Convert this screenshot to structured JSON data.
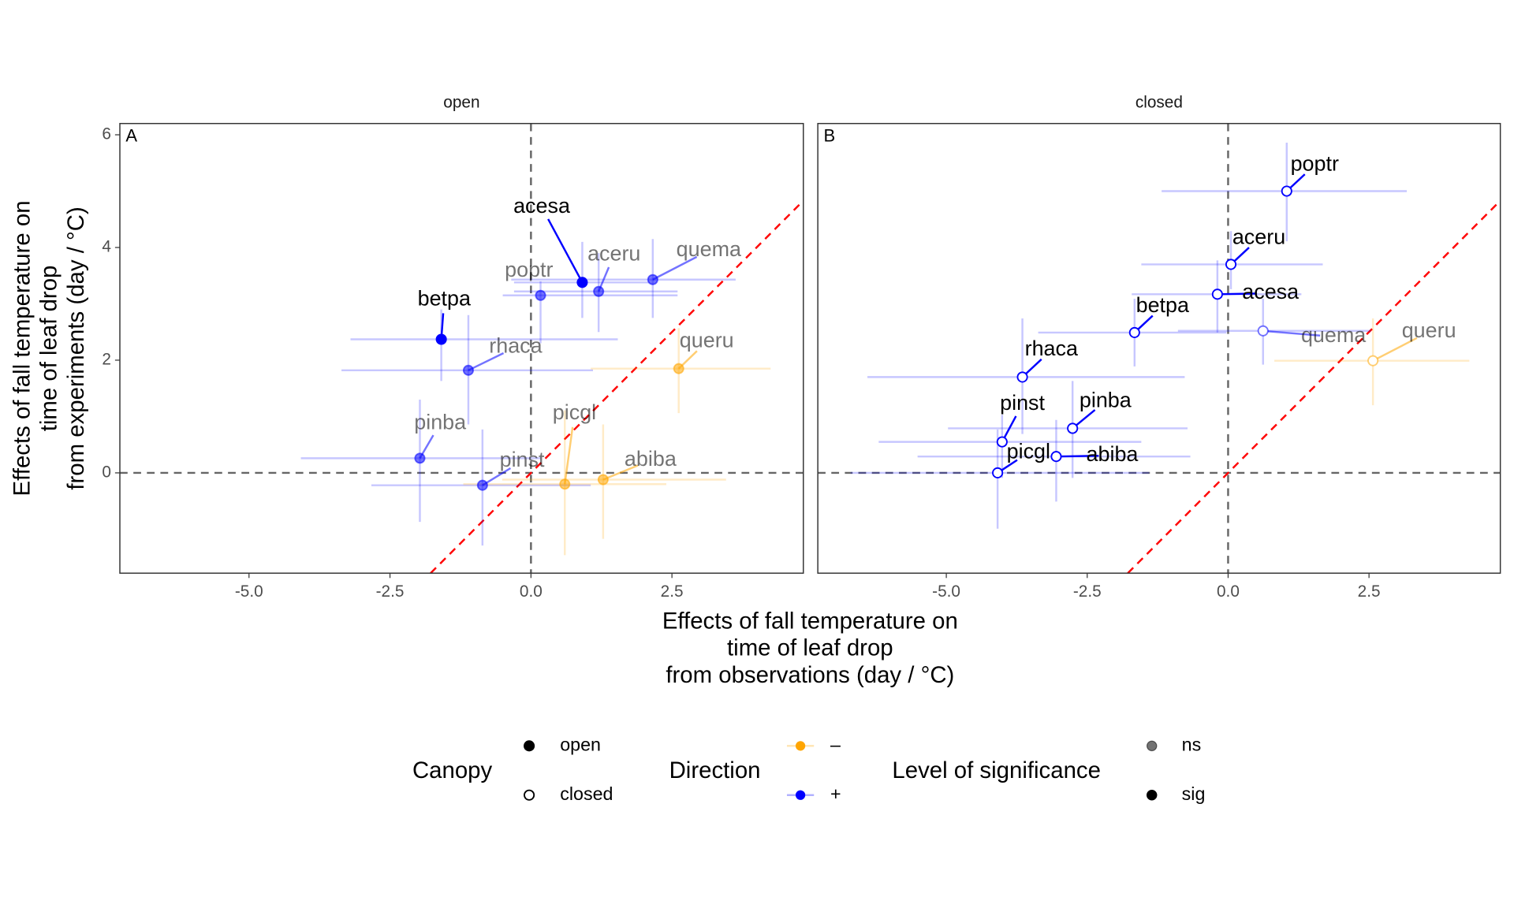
{
  "x_label": [
    "Effects of fall temperature on",
    "time of leaf drop",
    "from observations (day / °C)"
  ],
  "y_label": [
    "Effects of fall temperature on",
    "time of leaf drop",
    "from experiments (day / °C)"
  ],
  "legend": {
    "canopy": {
      "title": "Canopy",
      "items": [
        {
          "label": "open",
          "filled": true
        },
        {
          "label": "closed",
          "filled": false
        }
      ]
    },
    "direction": {
      "title": "Direction",
      "items": [
        {
          "label": "–",
          "color": "#FFA500"
        },
        {
          "label": "+",
          "color": "#0000FF"
        }
      ]
    },
    "significance": {
      "title": "Level of significance",
      "items": [
        {
          "label": "ns",
          "alpha": 0.55
        },
        {
          "label": "sig",
          "alpha": 1
        }
      ]
    }
  },
  "chart_data": [
    {
      "type": "scatter",
      "title": "open",
      "panel": "A",
      "xlim": [
        -7.29,
        4.83
      ],
      "ylim": [
        -1.78,
        6.2
      ],
      "xticks": [
        {
          "value": -5,
          "label": "-5.0"
        },
        2.5,
        {
          "value": 0,
          "label": "0.0"
        },
        {
          "value": -2.5,
          "label": "-2.5"
        }
      ],
      "yticks": [
        0,
        2,
        4,
        6
      ],
      "points": [
        {
          "label": "acesa",
          "x": 0.91,
          "y": 3.38,
          "x_range": [
            -0.3,
            2.1
          ],
          "y_range": [
            2.75,
            4.1
          ],
          "direction": "+",
          "significance": "sig"
        },
        {
          "label": "aceru",
          "x": 1.2,
          "y": 3.22,
          "x_range": [
            -0.3,
            2.6
          ],
          "y_range": [
            2.5,
            3.9
          ],
          "direction": "+",
          "significance": "ns"
        },
        {
          "label": "poptr",
          "x": 0.17,
          "y": 3.15,
          "x_range": [
            -0.5,
            2.6
          ],
          "y_range": [
            2.3,
            3.4
          ],
          "direction": "+",
          "significance": "ns"
        },
        {
          "label": "quema",
          "x": 2.16,
          "y": 3.43,
          "x_range": [
            -0.35,
            3.63
          ],
          "y_range": [
            2.75,
            4.15
          ],
          "direction": "+",
          "significance": "ns"
        },
        {
          "label": "betpa",
          "x": -1.59,
          "y": 2.37,
          "x_range": [
            -3.2,
            1.54
          ],
          "y_range": [
            1.63,
            2.9
          ],
          "direction": "+",
          "significance": "sig"
        },
        {
          "label": "rhaca",
          "x": -1.11,
          "y": 1.82,
          "x_range": [
            -3.36,
            1.1
          ],
          "y_range": [
            0.86,
            2.8
          ],
          "direction": "+",
          "significance": "ns"
        },
        {
          "label": "queru",
          "x": 2.62,
          "y": 1.85,
          "x_range": [
            1.06,
            4.25
          ],
          "y_range": [
            1.06,
            2.57
          ],
          "direction": "–",
          "significance": "ns"
        },
        {
          "label": "pinba",
          "x": -1.97,
          "y": 0.26,
          "x_range": [
            -4.08,
            0.17
          ],
          "y_range": [
            -0.87,
            1.3
          ],
          "direction": "+",
          "significance": "ns"
        },
        {
          "label": "pinst",
          "x": -0.86,
          "y": -0.22,
          "x_range": [
            -2.83,
            1.06
          ],
          "y_range": [
            -1.29,
            0.77
          ],
          "direction": "+",
          "significance": "ns"
        },
        {
          "label": "picgl",
          "x": 0.6,
          "y": -0.2,
          "x_range": [
            -1.2,
            2.4
          ],
          "y_range": [
            -1.46,
            1.11
          ],
          "direction": "–",
          "significance": "ns"
        },
        {
          "label": "abiba",
          "x": 1.28,
          "y": -0.12,
          "x_range": [
            -0.51,
            3.46
          ],
          "y_range": [
            -1.17,
            0.86
          ],
          "direction": "–",
          "significance": "ns"
        }
      ]
    },
    {
      "type": "scatter",
      "title": "closed",
      "panel": "B",
      "xlim": [
        -7.28,
        4.83
      ],
      "ylim": [
        -1.78,
        6.2
      ],
      "xticks": [
        {
          "value": -5,
          "label": "-5.0"
        },
        {
          "value": -2.5,
          "label": "-2.5"
        },
        {
          "value": 0,
          "label": "0.0"
        },
        2.5
      ],
      "points": [
        {
          "label": "poptr",
          "x": 1.04,
          "y": 5.0,
          "x_range": [
            -1.18,
            3.17
          ],
          "y_range": [
            4.11,
            5.86
          ],
          "direction": "+",
          "significance": "sig"
        },
        {
          "label": "aceru",
          "x": 0.05,
          "y": 3.7,
          "x_range": [
            -1.54,
            1.68
          ],
          "y_range": [
            3.26,
            4.29
          ],
          "direction": "+",
          "significance": "sig"
        },
        {
          "label": "acesa",
          "x": -0.19,
          "y": 3.17,
          "x_range": [
            -1.71,
            1.3
          ],
          "y_range": [
            2.49,
            3.77
          ],
          "direction": "+",
          "significance": "sig"
        },
        {
          "label": "betpa",
          "x": -1.66,
          "y": 2.49,
          "x_range": [
            -3.37,
            -0.03
          ],
          "y_range": [
            1.89,
            3.09
          ],
          "direction": "+",
          "significance": "sig"
        },
        {
          "label": "quema",
          "x": 0.62,
          "y": 2.52,
          "x_range": [
            -0.89,
            2.53
          ],
          "y_range": [
            1.92,
            3.09
          ],
          "direction": "+",
          "significance": "ns"
        },
        {
          "label": "queru",
          "x": 2.57,
          "y": 1.99,
          "x_range": [
            0.82,
            4.28
          ],
          "y_range": [
            1.2,
            2.74
          ],
          "direction": "–",
          "significance": "ns"
        },
        {
          "label": "rhaca",
          "x": -3.65,
          "y": 1.7,
          "x_range": [
            -6.4,
            -0.77
          ],
          "y_range": [
            0.69,
            2.74
          ],
          "direction": "+",
          "significance": "sig"
        },
        {
          "label": "pinba",
          "x": -2.76,
          "y": 0.79,
          "x_range": [
            -4.97,
            -0.72
          ],
          "y_range": [
            -0.09,
            1.63
          ],
          "direction": "+",
          "significance": "sig"
        },
        {
          "label": "pinst",
          "x": -4.01,
          "y": 0.55,
          "x_range": [
            -6.2,
            -1.54
          ],
          "y_range": [
            -0.09,
            1.03
          ],
          "direction": "+",
          "significance": "sig"
        },
        {
          "label": "picgl",
          "x": -4.09,
          "y": 0.0,
          "x_range": [
            -6.7,
            -1.4
          ],
          "y_range": [
            -0.99,
            0.77
          ],
          "direction": "+",
          "significance": "sig"
        },
        {
          "label": "abiba",
          "x": -3.05,
          "y": 0.29,
          "x_range": [
            -5.51,
            -0.67
          ],
          "y_range": [
            -0.51,
            0.94
          ],
          "direction": "+",
          "significance": "sig"
        }
      ]
    }
  ]
}
